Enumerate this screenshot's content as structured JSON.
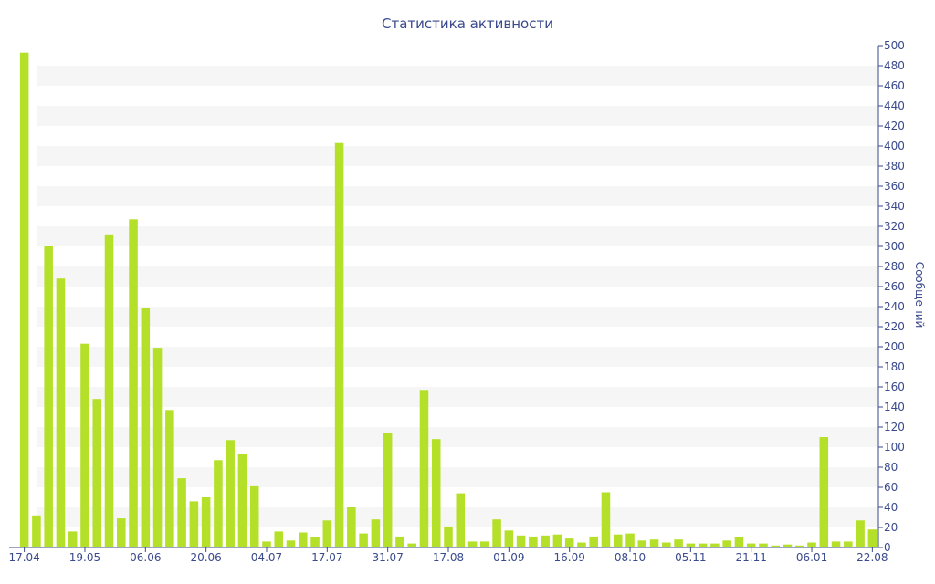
{
  "chart_data": {
    "type": "bar",
    "title": "Статистика активности",
    "ylabel": "Сообщений",
    "xlabel": "",
    "ylim": [
      0,
      500
    ],
    "yticks": [
      0,
      20,
      40,
      60,
      80,
      100,
      120,
      140,
      160,
      180,
      200,
      220,
      240,
      260,
      280,
      300,
      320,
      340,
      360,
      380,
      400,
      420,
      440,
      460,
      480,
      500
    ],
    "y_axis_side": "right",
    "grid": "alternating horizontal bands",
    "bar_color": "#b5e02a",
    "x_tick_labels": [
      {
        "label": "17.04",
        "index": 0
      },
      {
        "label": "19.05",
        "index": 5
      },
      {
        "label": "06.06",
        "index": 10
      },
      {
        "label": "20.06",
        "index": 15
      },
      {
        "label": "04.07",
        "index": 20
      },
      {
        "label": "17.07",
        "index": 25
      },
      {
        "label": "31.07",
        "index": 30
      },
      {
        "label": "17.08",
        "index": 35
      },
      {
        "label": "01.09",
        "index": 40
      },
      {
        "label": "16.09",
        "index": 45
      },
      {
        "label": "08.10",
        "index": 50
      },
      {
        "label": "05.11",
        "index": 55
      },
      {
        "label": "21.11",
        "index": 60
      },
      {
        "label": "06.01",
        "index": 65
      },
      {
        "label": "22.08",
        "index": 70
      }
    ],
    "values": [
      493,
      32,
      300,
      268,
      16,
      203,
      148,
      312,
      29,
      327,
      239,
      199,
      137,
      69,
      46,
      50,
      87,
      107,
      93,
      61,
      6,
      16,
      7,
      15,
      10,
      27,
      403,
      40,
      14,
      28,
      114,
      11,
      4,
      157,
      108,
      21,
      54,
      6,
      6,
      28,
      17,
      12,
      11,
      12,
      13,
      9,
      5,
      11,
      55,
      13,
      14,
      7,
      8,
      5,
      8,
      4,
      4,
      4,
      7,
      10,
      4,
      4,
      2,
      3,
      2,
      5,
      110,
      6,
      6,
      27,
      18
    ]
  }
}
